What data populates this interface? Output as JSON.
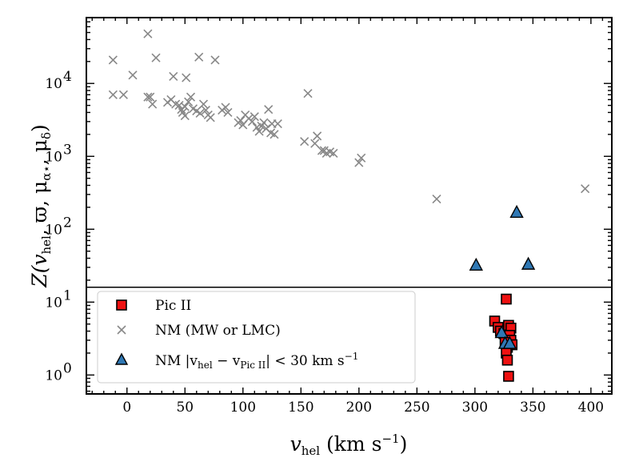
{
  "chart_data": {
    "type": "scatter",
    "xlabel_main": "v",
    "xlabel_sub": "hel",
    "xlabel_units": " (km s",
    "xlabel_exp": "−1",
    "xlabel_close": ")",
    "ylabel": "Z(v_hel, ϖ, μ_α⋆, μ_δ)",
    "ylabel_parts": {
      "z_open": "Z(v",
      "hel": "hel",
      "varpi": ", ϖ, μ",
      "alpha": "α⋆",
      "mu": ", μ",
      "delta": "δ",
      "close": ")"
    },
    "x_range": [
      -35,
      418
    ],
    "y_scale": "log",
    "y_range": [
      0.55,
      80000
    ],
    "separator_y": 16,
    "x_ticks": [
      0,
      50,
      100,
      150,
      200,
      250,
      300,
      350,
      400
    ],
    "x_tick_labels": [
      "0",
      "50",
      "100",
      "150",
      "200",
      "250",
      "300",
      "350",
      "400"
    ],
    "y_ticks": [
      1,
      10,
      100,
      1000,
      10000
    ],
    "y_tick_labels": [
      {
        "base": "10",
        "exp": "0"
      },
      {
        "base": "10",
        "exp": "1"
      },
      {
        "base": "10",
        "exp": "2"
      },
      {
        "base": "10",
        "exp": "3"
      },
      {
        "base": "10",
        "exp": "4"
      }
    ],
    "colors": {
      "pic": "#ee1111",
      "nm": "#888888",
      "nm_close": "#2f78b4"
    },
    "legend": {
      "position": "lower-left",
      "entries": [
        {
          "label": "Pic II",
          "marker": "square"
        },
        {
          "label": "NM (MW or LMC)",
          "marker": "x"
        },
        {
          "label_parts": [
            "NM |v",
            "hel",
            " − v",
            "Pic II",
            "| < 30 km s",
            "−1"
          ],
          "marker": "triangle"
        }
      ]
    },
    "series": [
      {
        "name": "Pic II",
        "marker": "square",
        "points": [
          [
            327,
            11.0
          ],
          [
            317,
            5.5
          ],
          [
            320,
            4.5
          ],
          [
            322,
            4.0
          ],
          [
            325,
            3.7
          ],
          [
            327,
            3.3
          ],
          [
            329,
            4.8
          ],
          [
            331,
            4.4
          ],
          [
            330,
            3.5
          ],
          [
            331,
            3.0
          ],
          [
            332,
            2.6
          ],
          [
            328,
            2.4
          ],
          [
            326,
            2.8
          ],
          [
            327,
            2.0
          ],
          [
            328,
            1.6
          ],
          [
            329,
            0.96
          ]
        ]
      },
      {
        "name": "NM (MW or LMC)",
        "marker": "x",
        "points": [
          [
            -12,
            21000
          ],
          [
            -12,
            7000
          ],
          [
            -3,
            7000
          ],
          [
            5,
            13000
          ],
          [
            18,
            48000
          ],
          [
            18,
            6500
          ],
          [
            20,
            6500
          ],
          [
            22,
            5200
          ],
          [
            25,
            22500
          ],
          [
            35,
            5500
          ],
          [
            38,
            6000
          ],
          [
            40,
            12500
          ],
          [
            42,
            5200
          ],
          [
            45,
            5000
          ],
          [
            47,
            4400
          ],
          [
            48,
            4000
          ],
          [
            50,
            4800
          ],
          [
            51,
            12000
          ],
          [
            50,
            3600
          ],
          [
            53,
            5600
          ],
          [
            55,
            6500
          ],
          [
            57,
            4500
          ],
          [
            60,
            4200
          ],
          [
            62,
            23000
          ],
          [
            63,
            3900
          ],
          [
            66,
            5200
          ],
          [
            68,
            4300
          ],
          [
            70,
            3700
          ],
          [
            72,
            3400
          ],
          [
            76,
            21000
          ],
          [
            82,
            4300
          ],
          [
            85,
            4700
          ],
          [
            87,
            4000
          ],
          [
            96,
            2900
          ],
          [
            98,
            3100
          ],
          [
            100,
            2700
          ],
          [
            102,
            3700
          ],
          [
            105,
            3300
          ],
          [
            108,
            3000
          ],
          [
            110,
            3500
          ],
          [
            112,
            2500
          ],
          [
            114,
            2200
          ],
          [
            116,
            2600
          ],
          [
            118,
            2900
          ],
          [
            120,
            2400
          ],
          [
            122,
            4400
          ],
          [
            124,
            2100
          ],
          [
            125,
            2800
          ],
          [
            127,
            2000
          ],
          [
            130,
            2800
          ],
          [
            153,
            1600
          ],
          [
            156,
            7300
          ],
          [
            162,
            1500
          ],
          [
            164,
            1900
          ],
          [
            168,
            1200
          ],
          [
            170,
            1200
          ],
          [
            172,
            1100
          ],
          [
            175,
            1150
          ],
          [
            178,
            1100
          ],
          [
            200,
            820
          ],
          [
            202,
            950
          ],
          [
            267,
            260
          ],
          [
            395,
            360
          ]
        ]
      },
      {
        "name": "NM |v_hel − v_Pic II| < 30 km s^−1",
        "marker": "triangle",
        "points": [
          [
            301,
            32
          ],
          [
            336,
            170
          ],
          [
            346,
            33
          ],
          [
            323,
            3.8
          ],
          [
            326,
            2.7
          ],
          [
            330,
            2.7
          ]
        ]
      }
    ]
  }
}
